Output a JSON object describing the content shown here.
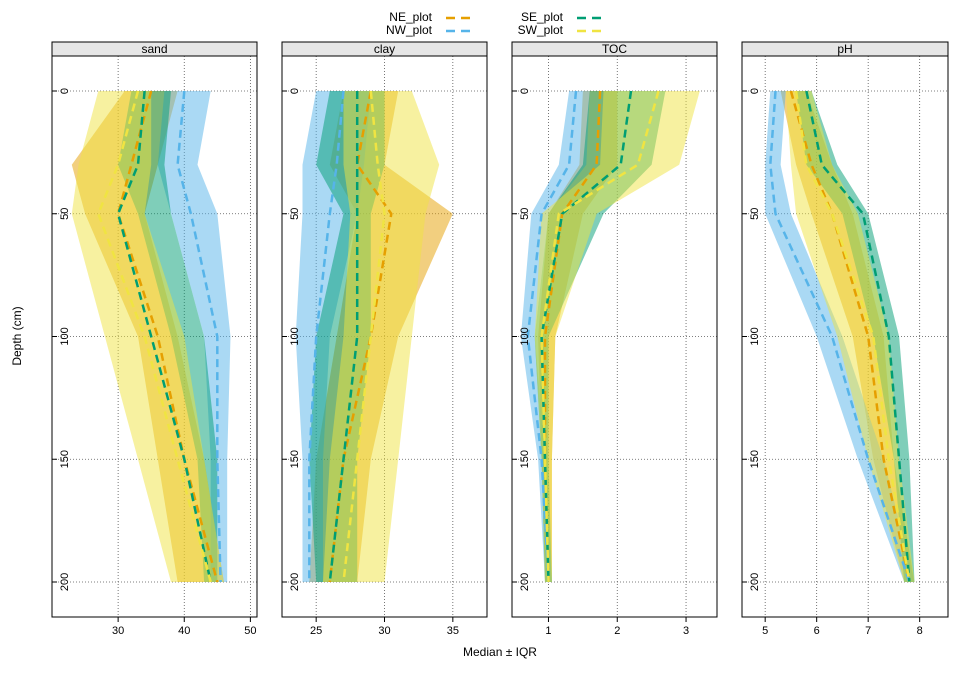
{
  "legend": {
    "entries": [
      {
        "name": "NE_plot",
        "color": "#E69F00"
      },
      {
        "name": "NW_plot",
        "color": "#56B4E9"
      },
      {
        "name": "SE_plot",
        "color": "#009E73"
      },
      {
        "name": "SW_plot",
        "color": "#F0E442"
      }
    ]
  },
  "chart_data": {
    "type": "line",
    "xlabel": "Median ± IQR",
    "ylabel": "Depth (cm)",
    "ylim": [
      213,
      -12
    ],
    "y_ticks": [
      0,
      50,
      100,
      150,
      200
    ],
    "y_tick_labels": [
      "0",
      "50",
      "100",
      "150",
      "200"
    ],
    "depths": [
      0,
      30,
      50,
      100,
      150,
      200
    ],
    "series_names": [
      "NE_plot",
      "NW_plot",
      "SE_plot",
      "SW_plot"
    ],
    "colors": {
      "NE_plot": "#E69F00",
      "NW_plot": "#56B4E9",
      "SE_plot": "#009E73",
      "SW_plot": "#F0E442"
    },
    "panels": [
      {
        "title": "sand",
        "xlim": [
          20,
          51
        ],
        "x_ticks": [
          30,
          40,
          50
        ],
        "x_tick_labels": [
          "30",
          "40",
          "50"
        ],
        "series": [
          {
            "name": "NE_plot",
            "median": [
              35,
              32,
              30,
              36,
              40,
              45
            ],
            "q25": [
              31,
              23,
              25,
              33,
              36,
              39
            ],
            "q75": [
              39,
              36,
              34,
              39,
              43,
              46
            ]
          },
          {
            "name": "NW_plot",
            "median": [
              40,
              39,
              41,
              45,
              45,
              45.5
            ],
            "q25": [
              37,
              36,
              38,
              43,
              44,
              44
            ],
            "q75": [
              44,
              42,
              45,
              47,
              46.5,
              46.5
            ]
          },
          {
            "name": "SE_plot",
            "median": [
              34,
              33,
              30,
              35,
              40,
              44
            ],
            "q25": [
              32,
              30,
              33,
              38,
              42,
              43
            ],
            "q75": [
              38,
              37,
              38,
              43,
              45,
              45
            ]
          },
          {
            "name": "SW_plot",
            "median": [
              33,
              30,
              27,
              34,
              39,
              44
            ],
            "q25": [
              27,
              24,
              23,
              28,
              33,
              38
            ],
            "q75": [
              35,
              35,
              34,
              40,
              43,
              46
            ]
          }
        ]
      },
      {
        "title": "clay",
        "xlim": [
          22.5,
          37.5
        ],
        "x_ticks": [
          25,
          30,
          35
        ],
        "x_tick_labels": [
          "25",
          "30",
          "35"
        ],
        "series": [
          {
            "name": "NE_plot",
            "median": [
              29,
              28,
              30.5,
              29,
              27,
              26
            ],
            "q25": [
              27,
              26,
              28,
              26.5,
              25,
              24.5
            ],
            "q75": [
              31,
              30,
              35,
              31,
              29,
              28
            ]
          },
          {
            "name": "NW_plot",
            "median": [
              27,
              26.5,
              26,
              25,
              24.5,
              24.5
            ],
            "q25": [
              25,
              24,
              24,
              23.5,
              24,
              24
            ],
            "q75": [
              29,
              28.5,
              28,
              26,
              25.5,
              25.5
            ]
          },
          {
            "name": "SE_plot",
            "median": [
              28,
              28,
              28,
              28,
              27,
              26
            ],
            "q25": [
              26,
              25,
              27,
              25,
              24.5,
              25
            ],
            "q75": [
              30,
              30,
              29,
              29,
              28,
              28
            ]
          },
          {
            "name": "SW_plot",
            "median": [
              29,
              29.5,
              30,
              29,
              28,
              27
            ],
            "q25": [
              27,
              27,
              27.5,
              27,
              26,
              25.5
            ],
            "q75": [
              32,
              34,
              33,
              32,
              31,
              30
            ]
          }
        ]
      },
      {
        "title": "TOC",
        "xlim": [
          0.47,
          3.45
        ],
        "x_ticks": [
          1,
          2,
          3
        ],
        "x_tick_labels": [
          "1",
          "2",
          "3"
        ],
        "series": [
          {
            "name": "NE_plot",
            "median": [
              1.75,
              1.7,
              1.2,
              0.95,
              0.95,
              1.0
            ],
            "q25": [
              1.5,
              1.45,
              1.0,
              0.85,
              0.9,
              0.95
            ],
            "q75": [
              2.0,
              2.0,
              1.5,
              1.1,
              1.05,
              1.05
            ]
          },
          {
            "name": "NW_plot",
            "median": [
              1.4,
              1.3,
              0.9,
              0.7,
              0.9,
              1.0
            ],
            "q25": [
              1.3,
              1.15,
              0.75,
              0.6,
              0.85,
              0.95
            ],
            "q75": [
              1.6,
              1.55,
              1.0,
              0.8,
              0.95,
              1.05
            ]
          },
          {
            "name": "SE_plot",
            "median": [
              2.2,
              2.05,
              1.2,
              0.9,
              0.95,
              1.0
            ],
            "q25": [
              1.6,
              1.5,
              1.0,
              0.8,
              0.9,
              0.95
            ],
            "q75": [
              2.7,
              2.5,
              1.8,
              1.0,
              1.0,
              1.05
            ]
          },
          {
            "name": "SW_plot",
            "median": [
              2.6,
              2.3,
              1.15,
              0.9,
              0.95,
              1.0
            ],
            "q25": [
              1.8,
              1.75,
              0.9,
              0.8,
              0.9,
              0.95
            ],
            "q75": [
              3.2,
              2.9,
              1.7,
              1.1,
              1.05,
              1.05
            ]
          }
        ]
      },
      {
        "title": "pH",
        "xlim": [
          4.55,
          8.55
        ],
        "x_ticks": [
          5,
          6,
          7,
          8
        ],
        "x_tick_labels": [
          "5",
          "6",
          "7",
          "8"
        ],
        "series": [
          {
            "name": "NE_plot",
            "median": [
              5.5,
              5.9,
              6.3,
              7.0,
              7.3,
              7.8
            ],
            "q25": [
              5.3,
              5.6,
              5.9,
              6.7,
              7.1,
              7.7
            ],
            "q75": [
              5.8,
              6.3,
              6.7,
              7.3,
              7.5,
              7.9
            ]
          },
          {
            "name": "NW_plot",
            "median": [
              5.2,
              5.1,
              5.2,
              6.3,
              7.0,
              7.8
            ],
            "q25": [
              5.1,
              5.0,
              5.0,
              6.0,
              6.8,
              7.7
            ],
            "q75": [
              5.4,
              5.3,
              5.5,
              6.5,
              7.3,
              7.9
            ]
          },
          {
            "name": "SE_plot",
            "median": [
              5.8,
              6.1,
              6.9,
              7.4,
              7.6,
              7.8
            ],
            "q25": [
              5.6,
              5.8,
              6.5,
              7.1,
              7.5,
              7.7
            ],
            "q75": [
              5.9,
              6.4,
              7.0,
              7.6,
              7.8,
              7.9
            ]
          },
          {
            "name": "SW_plot",
            "median": [
              5.6,
              5.8,
              6.3,
              7.1,
              7.4,
              7.8
            ],
            "q25": [
              5.4,
              5.5,
              5.6,
              6.4,
              7.0,
              7.7
            ],
            "q75": [
              5.9,
              6.3,
              6.8,
              7.4,
              7.6,
              7.9
            ]
          }
        ]
      }
    ]
  }
}
